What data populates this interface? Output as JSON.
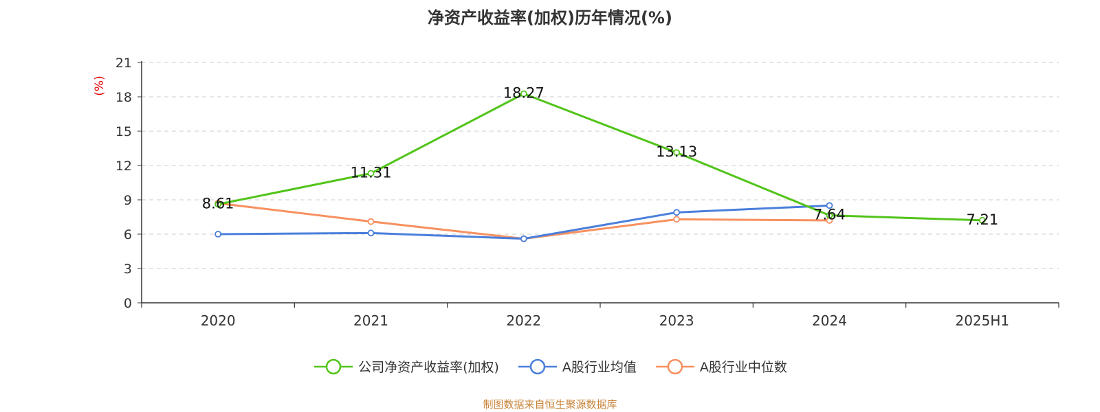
{
  "chart_data": {
    "type": "line",
    "title": "净资产收益率(加权)历年情况(%)",
    "ylabel": "(%)",
    "xlabel": "",
    "categories": [
      "2020",
      "2021",
      "2022",
      "2023",
      "2024",
      "2025H1"
    ],
    "ylim": [
      0,
      21
    ],
    "yticks": [
      0,
      3,
      6,
      9,
      12,
      15,
      18,
      21
    ],
    "grid": true,
    "legend_position": "bottom",
    "series": [
      {
        "name": "公司净资产收益率(加权)",
        "color": "#52c41a",
        "values": [
          8.61,
          11.31,
          18.27,
          13.13,
          7.64,
          7.21
        ],
        "labels": [
          "8.61",
          "11.31",
          "18.27",
          "13.13",
          "7.64",
          "7.21"
        ]
      },
      {
        "name": "A股行业均值",
        "color": "#4a7fdb",
        "values": [
          6.0,
          6.1,
          5.6,
          7.9,
          8.5,
          null
        ]
      },
      {
        "name": "A股行业中位数",
        "color": "#f7905f",
        "values": [
          8.7,
          7.1,
          5.6,
          7.3,
          7.2,
          null
        ]
      }
    ]
  },
  "source_note": "制图数据来自恒生聚源数据库"
}
